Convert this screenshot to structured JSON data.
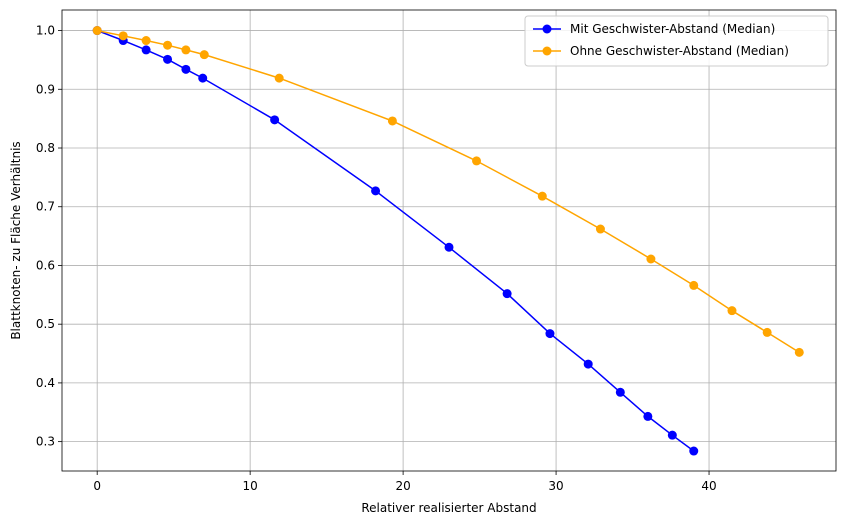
{
  "chart_data": {
    "type": "line",
    "title": "",
    "xlabel": "Relativer realisierter Abstand",
    "ylabel": "Blattknoten- zu Fläche Verhältnis",
    "xlim": [
      -2.3,
      48.3
    ],
    "ylim": [
      0.25,
      1.035
    ],
    "xticks": [
      0,
      10,
      20,
      30,
      40
    ],
    "yticks": [
      0.3,
      0.4,
      0.5,
      0.6,
      0.7,
      0.8,
      0.9,
      1.0
    ],
    "ytick_labels": [
      "0.3",
      "0.4",
      "0.5",
      "0.6",
      "0.7",
      "0.8",
      "0.9",
      "1.0"
    ],
    "grid": true,
    "legend_position": "top-right",
    "series": [
      {
        "name": "Mit Geschwister-Abstand (Median)",
        "color": "#0000ff",
        "marker": "circle",
        "x": [
          0.0,
          1.7,
          3.2,
          4.6,
          5.8,
          6.9,
          11.6,
          18.2,
          23.0,
          26.8,
          29.6,
          32.1,
          34.2,
          36.0,
          37.6,
          39.0
        ],
        "y": [
          1.0,
          0.983,
          0.967,
          0.951,
          0.934,
          0.919,
          0.848,
          0.727,
          0.631,
          0.552,
          0.484,
          0.432,
          0.384,
          0.343,
          0.311,
          0.284
        ]
      },
      {
        "name": "Ohne Geschwister-Abstand (Median)",
        "color": "#ffa500",
        "marker": "circle",
        "x": [
          0.0,
          1.7,
          3.2,
          4.6,
          5.8,
          7.0,
          11.9,
          19.3,
          24.8,
          29.1,
          32.9,
          36.2,
          39.0,
          41.5,
          43.8,
          45.9
        ],
        "y": [
          1.0,
          0.991,
          0.983,
          0.975,
          0.967,
          0.959,
          0.919,
          0.846,
          0.778,
          0.718,
          0.662,
          0.611,
          0.566,
          0.523,
          0.486,
          0.452
        ]
      }
    ]
  }
}
